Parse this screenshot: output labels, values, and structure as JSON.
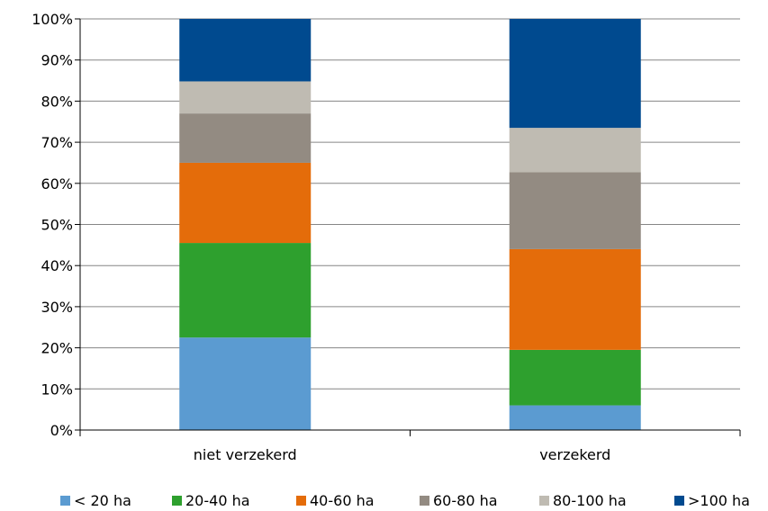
{
  "chart_data": {
    "type": "bar",
    "stacked": true,
    "categories": [
      "niet verzekerd",
      "verzekerd"
    ],
    "series": [
      {
        "name": "< 20 ha",
        "color": "#5b9bd1",
        "values": [
          22.5,
          6.0
        ]
      },
      {
        "name": "20-40 ha",
        "color": "#2ea02e",
        "values": [
          23.0,
          13.5
        ]
      },
      {
        "name": "40-60 ha",
        "color": "#e46c0a",
        "values": [
          19.5,
          24.5
        ]
      },
      {
        "name": "60-80 ha",
        "color": "#938b82",
        "values": [
          12.0,
          18.7
        ]
      },
      {
        "name": "80-100 ha",
        "color": "#bfbbb2",
        "values": [
          7.8,
          10.8
        ]
      },
      {
        "name": ">100 ha",
        "color": "#004a8f",
        "values": [
          15.2,
          26.5
        ]
      }
    ],
    "y_ticks": [
      "0%",
      "10%",
      "20%",
      "30%",
      "40%",
      "50%",
      "60%",
      "70%",
      "80%",
      "90%",
      "100%"
    ],
    "ylim": [
      0,
      100
    ],
    "grid": true,
    "legend_position": "bottom",
    "title": "",
    "xlabel": "",
    "ylabel": ""
  }
}
